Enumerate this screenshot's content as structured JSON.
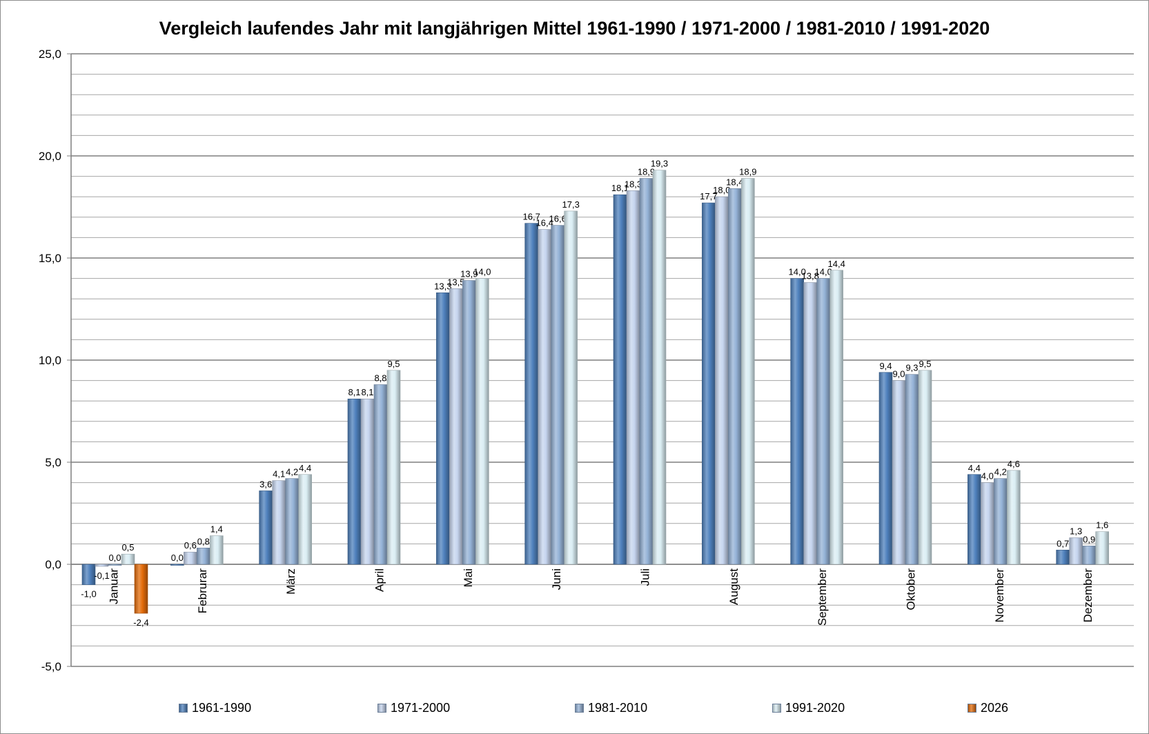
{
  "chart_data": {
    "type": "bar",
    "title": "Vergleich laufendes Jahr mit langjährigen Mittel 1961-1990 / 1971-2000 / 1981-2010 / 1991-2020",
    "xlabel": "",
    "ylabel": "",
    "ylim": [
      -5.0,
      25.0
    ],
    "yticks": [
      "25,0",
      "20,0",
      "15,0",
      "10,0",
      "5,0",
      "0,0",
      "-5,0"
    ],
    "ytick_values": [
      25,
      20,
      15,
      10,
      5,
      0,
      -5
    ],
    "grid": true,
    "legend_position": "bottom",
    "categories": [
      "Januar",
      "Februrar",
      "März",
      "April",
      "Mai",
      "Juni",
      "Juli",
      "August",
      "September",
      "Oktober",
      "November",
      "Dezember"
    ],
    "series": [
      {
        "name": "1961-1990",
        "color": "#4f81bd",
        "values": [
          -1.0,
          0.0,
          3.6,
          8.1,
          13.3,
          16.7,
          18.1,
          17.7,
          14.0,
          9.4,
          4.4,
          0.7
        ],
        "labels": [
          "-1,0",
          "0,0",
          "3,6",
          "8,1",
          "13,3",
          "16,7",
          "18,1",
          "17,7",
          "14,0",
          "9,4",
          "4,4",
          "0,7"
        ]
      },
      {
        "name": "1971-2000",
        "color": "#c6d5ef",
        "values": [
          -0.1,
          0.6,
          4.1,
          8.1,
          13.5,
          16.4,
          18.3,
          18.0,
          13.8,
          9.0,
          4.0,
          1.3
        ],
        "labels": [
          "-0,1",
          "0,6",
          "4,1",
          "8,1",
          "13,5",
          "16,4",
          "18,3",
          "18,0",
          "13,8",
          "9,0",
          "4,0",
          "1,3"
        ]
      },
      {
        "name": "1981-2010",
        "color": "#95b3d7",
        "values": [
          0.0,
          0.8,
          4.2,
          8.8,
          13.9,
          16.6,
          18.9,
          18.4,
          14.0,
          9.3,
          4.2,
          0.9
        ],
        "labels": [
          "0,0",
          "0,8",
          "4,2",
          "8,8",
          "13,9",
          "16,6",
          "18,9",
          "18,4",
          "14,0",
          "9,3",
          "4,2",
          "0,9"
        ]
      },
      {
        "name": "1991-2020",
        "color": "#dbeef4",
        "values": [
          0.5,
          1.4,
          4.4,
          9.5,
          14.0,
          17.3,
          19.3,
          18.9,
          14.4,
          9.5,
          4.6,
          1.6
        ],
        "labels": [
          "0,5",
          "1,4",
          "4,4",
          "9,5",
          "14,0",
          "17,3",
          "19,3",
          "18,9",
          "14,4",
          "9,5",
          "4,6",
          "1,6"
        ]
      },
      {
        "name": "2026",
        "color": "#e46c0a",
        "values": [
          -2.4,
          null,
          null,
          null,
          null,
          null,
          null,
          null,
          null,
          null,
          null,
          null
        ],
        "labels": [
          "-2,4",
          "",
          "",
          "",
          "",
          "",
          "",
          "",
          "",
          "",
          "",
          ""
        ]
      }
    ]
  }
}
